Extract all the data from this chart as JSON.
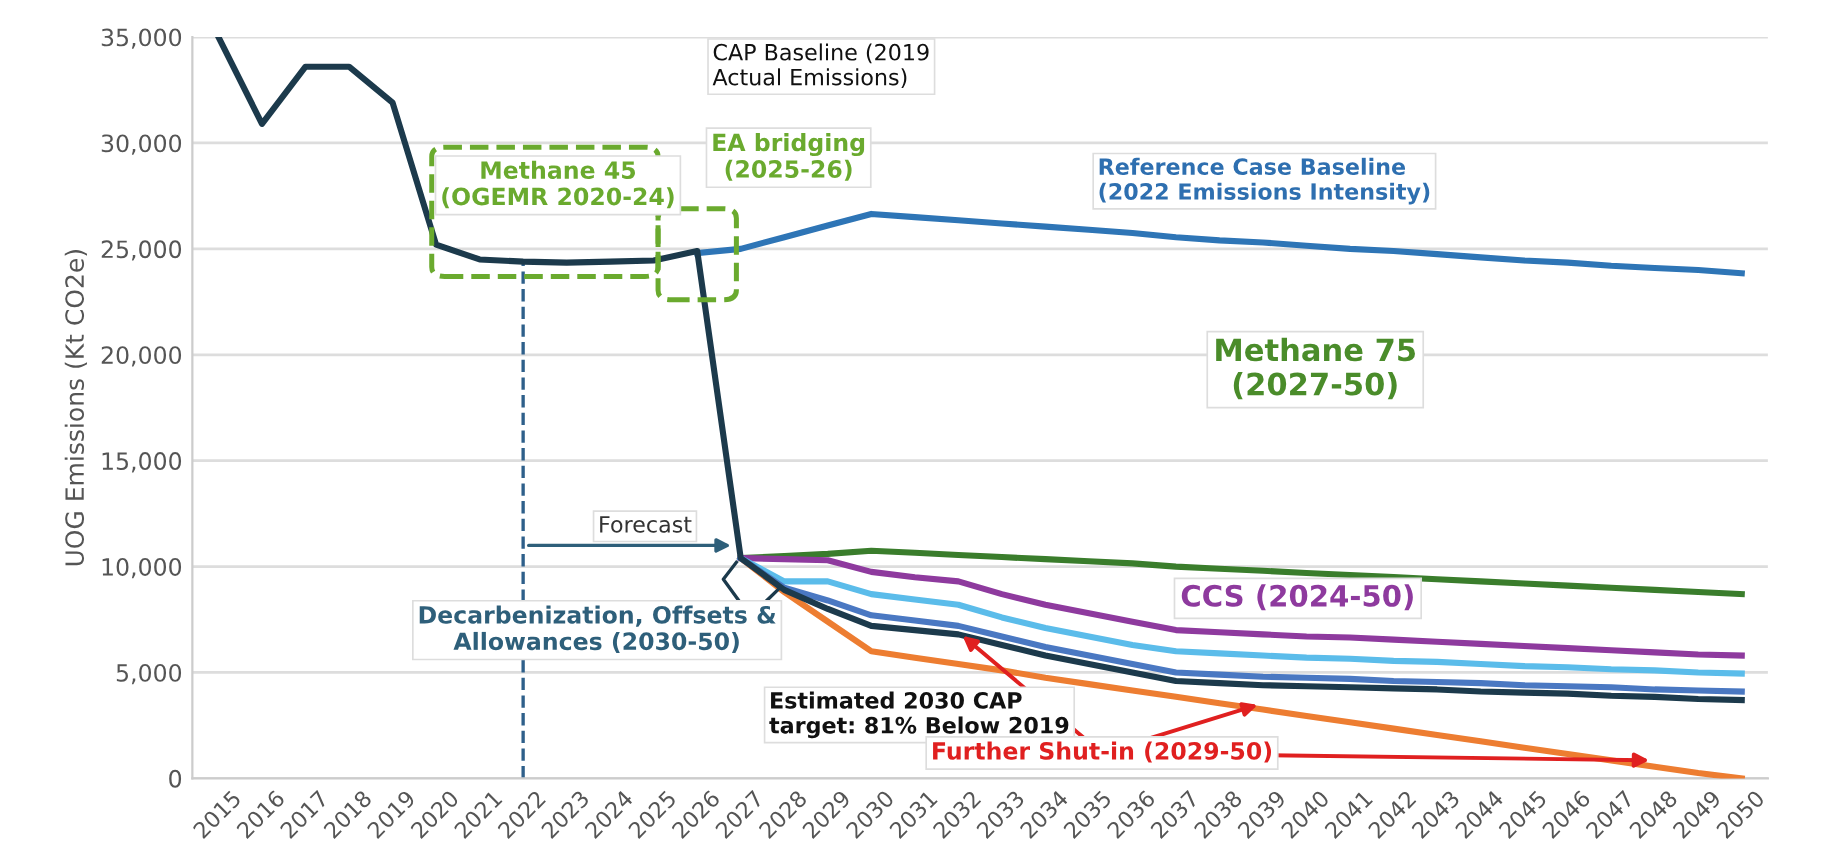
{
  "chart_data": {
    "type": "line",
    "ylabel": "UOG Emissions (Kt CO2e)",
    "categories": [
      "2015",
      "2016",
      "2017",
      "2018",
      "2019",
      "2020",
      "2021",
      "2022",
      "2023",
      "2024",
      "2025",
      "2026",
      "2027",
      "2028",
      "2029",
      "2030",
      "2031",
      "2032",
      "2033",
      "2034",
      "2035",
      "2036",
      "2037",
      "2038",
      "2039",
      "2040",
      "2041",
      "2042",
      "2043",
      "2044",
      "2045",
      "2046",
      "2047",
      "2048",
      "2049",
      "2050"
    ],
    "series": [
      {
        "color": "#2e75b6",
        "values": [
          null,
          null,
          null,
          null,
          null,
          null,
          null,
          null,
          null,
          null,
          null,
          24800,
          25000,
          25550,
          26100,
          26650,
          26500,
          26350,
          26200,
          26050,
          25900,
          25750,
          25550,
          25400,
          25300,
          25150,
          25000,
          24900,
          24750,
          24600,
          24450,
          24350,
          24200,
          24100,
          24000,
          23850
        ]
      },
      {
        "color": "#ed7d31",
        "values": [
          null,
          null,
          null,
          null,
          null,
          null,
          null,
          null,
          null,
          null,
          null,
          null,
          10400,
          8800,
          7400,
          6000,
          5700,
          5400,
          5100,
          4750,
          4450,
          4150,
          3850,
          3550,
          3250,
          2950,
          2650,
          2350,
          2050,
          1750,
          1450,
          1150,
          850,
          550,
          250,
          0
        ]
      },
      {
        "color": "#3a7d2c",
        "values": [
          null,
          null,
          null,
          null,
          null,
          null,
          null,
          null,
          null,
          null,
          null,
          null,
          10400,
          10500,
          10600,
          10750,
          10650,
          10550,
          10450,
          10350,
          10250,
          10150,
          10000,
          9900,
          9800,
          9700,
          9600,
          9500,
          9400,
          9300,
          9200,
          9100,
          9000,
          8900,
          8800,
          8700
        ]
      },
      {
        "color": "#8e3a9e",
        "values": [
          null,
          null,
          null,
          null,
          null,
          null,
          null,
          null,
          null,
          null,
          null,
          null,
          10400,
          10350,
          10300,
          9750,
          9500,
          9300,
          8700,
          8200,
          7800,
          7400,
          7000,
          6900,
          6800,
          6700,
          6650,
          6550,
          6450,
          6350,
          6250,
          6150,
          6050,
          5950,
          5850,
          5800
        ]
      },
      {
        "color": "#5bbcea",
        "values": [
          null,
          null,
          null,
          null,
          null,
          null,
          null,
          null,
          null,
          null,
          null,
          null,
          10400,
          9300,
          9300,
          8700,
          8450,
          8200,
          7600,
          7100,
          6700,
          6300,
          6000,
          5900,
          5800,
          5700,
          5650,
          5550,
          5500,
          5400,
          5300,
          5250,
          5150,
          5100,
          5000,
          4950
        ]
      },
      {
        "color": "#4a78c2",
        "values": [
          null,
          null,
          null,
          null,
          null,
          null,
          null,
          null,
          null,
          null,
          null,
          null,
          10400,
          9000,
          8400,
          7700,
          7450,
          7200,
          6700,
          6200,
          5800,
          5400,
          5000,
          4900,
          4800,
          4750,
          4700,
          4600,
          4550,
          4500,
          4400,
          4350,
          4300,
          4200,
          4150,
          4100
        ]
      },
      {
        "color": "#1c3a4c",
        "values": [
          35000,
          30900,
          33600,
          33600,
          31900,
          25200,
          24500,
          24400,
          24350,
          24400,
          24450,
          24900,
          10400,
          8900,
          8000,
          7200,
          7000,
          6800,
          6300,
          5800,
          5400,
          5000,
          4600,
          4500,
          4400,
          4350,
          4300,
          4250,
          4200,
          4100,
          4050,
          4000,
          3900,
          3850,
          3750,
          3700
        ]
      }
    ],
    "ylim": [
      0,
      35000
    ],
    "yticks": [
      {
        "value": 0,
        "label": "0"
      },
      {
        "value": 5000,
        "label": "5,000"
      },
      {
        "value": 10000,
        "label": "10,000"
      },
      {
        "value": 15000,
        "label": "15,000"
      },
      {
        "value": 20000,
        "label": "20,000"
      },
      {
        "value": 25000,
        "label": "25,000"
      },
      {
        "value": 30000,
        "label": "30,000"
      },
      {
        "value": 35000,
        "label": "35,000"
      }
    ],
    "ref_lines": [
      {
        "axis": "x",
        "value": "2022",
        "color": "#2e5f8a",
        "line_style": "dashed"
      }
    ],
    "annotations": [
      "CAP Baseline (2019\nActual Emissions)",
      "Methane 45\n(OGEMR 2020-24)",
      "EA bridging\n(2025-26)",
      "Reference Case Baseline\n(2022 Emissions Intensity)",
      "Methane 75\n(2027-50)",
      "CCS (2024-50)",
      {
        "text": "Forecast",
        "x": "2027",
        "y": 10400
      },
      {
        "text": "Decarbenization, Offsets &\nAllowances (2030-50)",
        "x": "2027",
        "y": 10400
      },
      "Estimated 2030 CAP\ntarget: 81% Below 2019",
      {
        "text": "Further Shut-in (2029-50)",
        "x": "2032",
        "y": 6900
      }
    ],
    "grid": "y",
    "line_style": "solid",
    "marker": "none"
  }
}
